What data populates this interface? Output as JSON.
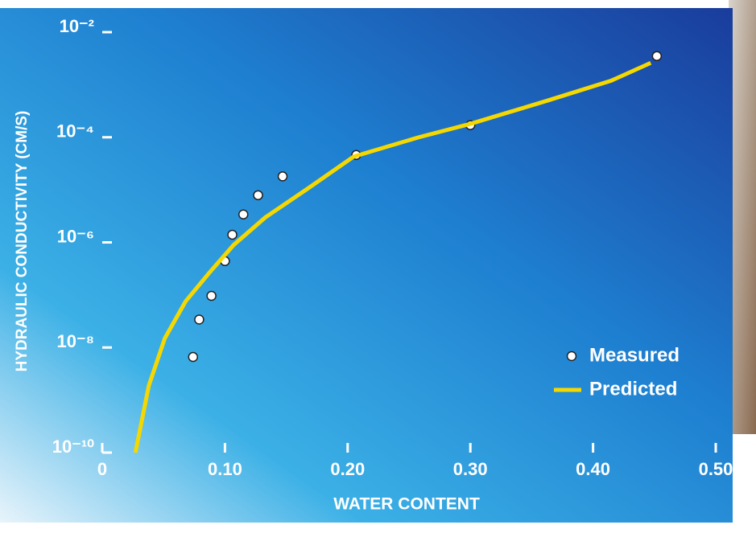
{
  "chart_data": {
    "type": "line",
    "y_label": "HYDRAULIC CONDUCTIVITY (CM/S)",
    "x_label": "WATER CONTENT",
    "ylog": true,
    "xlim": [
      0,
      0.5
    ],
    "ylim": [
      1e-10,
      0.01
    ],
    "xticks": [
      0,
      {
        "value": 0.1,
        "label": "0.10"
      },
      {
        "value": 0.2,
        "label": "0.20"
      },
      {
        "value": 0.3,
        "label": "0.30"
      },
      {
        "value": 0.4,
        "label": "0.40"
      },
      {
        "value": 0.5,
        "label": "0.50"
      }
    ],
    "yticks": [
      {
        "value": 1e-10,
        "label": "10⁻¹⁰"
      },
      {
        "value": 1e-08,
        "label": "10⁻⁸"
      },
      {
        "value": 1e-06,
        "label": "10⁻⁶"
      },
      {
        "value": 0.0001,
        "label": "10⁻⁴"
      },
      {
        "value": 0.01,
        "label": "10⁻²"
      }
    ],
    "legend": "bottom-right",
    "series": [
      {
        "name": "Measured",
        "type": "scatter",
        "color": "#ffffff",
        "x": [
          0.074,
          0.079,
          0.089,
          0.1,
          0.106,
          0.115,
          0.127,
          0.147,
          0.207,
          0.3,
          0.452
        ],
        "values": [
          6.6e-09,
          3.4e-08,
          9.6e-08,
          4.4e-07,
          1.4e-06,
          3.4e-06,
          7.9e-06,
          1.8e-05,
          4.6e-05,
          0.00017,
          0.0035
        ]
      },
      {
        "name": "Predicted",
        "type": "line",
        "color": "#f5d800",
        "x": [
          0.027,
          0.038,
          0.051,
          0.068,
          0.087,
          0.107,
          0.133,
          0.166,
          0.205,
          0.258,
          0.3,
          0.363,
          0.415,
          0.447
        ],
        "values": [
          1e-10,
          1.9e-09,
          1.5e-08,
          7.6e-08,
          2.6e-07,
          8.9e-07,
          3e-06,
          1e-05,
          4.3e-05,
          0.0001,
          0.00018,
          0.0005,
          0.0012,
          0.0026
        ]
      }
    ]
  }
}
